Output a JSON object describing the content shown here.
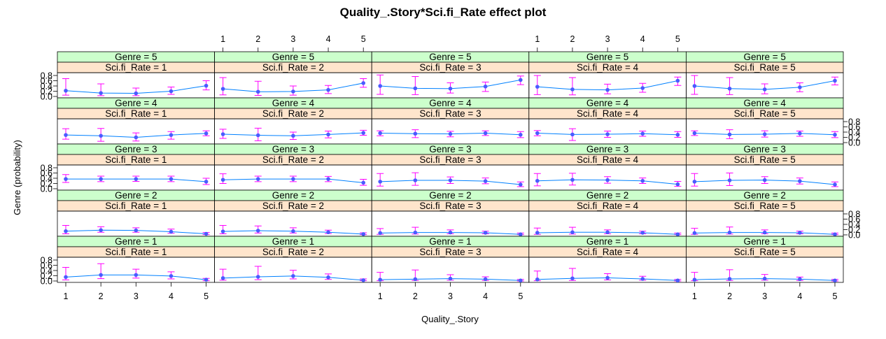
{
  "chart_data": {
    "type": "line",
    "title": "Quality_.Story*Sci.fi_Rate effect plot",
    "xlabel": "Quality_.Story",
    "ylabel": "Genre (probability)",
    "x": [
      1,
      2,
      3,
      4,
      5
    ],
    "x_tick_labels": [
      "1",
      "2",
      "3",
      "4",
      "5"
    ],
    "ylim": [
      0.0,
      0.8
    ],
    "y_tick_labels": [
      "0.0",
      "0.2",
      "0.4",
      "0.6",
      "0.8"
    ],
    "panel_columns": [
      "Sci.fi_Rate = 1",
      "Sci.fi_Rate = 2",
      "Sci.fi_Rate = 3",
      "Sci.fi_Rate = 4",
      "Sci.fi_Rate = 5"
    ],
    "panel_rows": [
      "Genre = 5",
      "Genre = 4",
      "Genre = 3",
      "Genre = 2",
      "Genre = 1"
    ],
    "colors": {
      "genre_strip": "#ccffcc",
      "scifi_strip": "#ffe5cc",
      "line": "#0080ff",
      "point": "#4a5bff",
      "error_bar": "#ff00ff"
    },
    "panels": [
      {
        "genre": "Genre = 5",
        "scifi": "Sci.fi_Rate = 1",
        "fit": [
          0.22,
          0.13,
          0.12,
          0.2,
          0.41
        ],
        "lower": [
          0.05,
          0.03,
          0.03,
          0.08,
          0.25
        ],
        "upper": [
          0.68,
          0.48,
          0.32,
          0.36,
          0.6
        ]
      },
      {
        "genre": "Genre = 5",
        "scifi": "Sci.fi_Rate = 2",
        "fit": [
          0.29,
          0.18,
          0.19,
          0.25,
          0.51
        ],
        "lower": [
          0.06,
          0.04,
          0.05,
          0.11,
          0.35
        ],
        "upper": [
          0.72,
          0.58,
          0.4,
          0.42,
          0.68
        ]
      },
      {
        "genre": "Genre = 5",
        "scifi": "Sci.fi_Rate = 3",
        "fit": [
          0.4,
          0.31,
          0.3,
          0.38,
          0.63
        ],
        "lower": [
          0.08,
          0.07,
          0.13,
          0.19,
          0.45
        ],
        "upper": [
          0.82,
          0.76,
          0.52,
          0.55,
          0.78
        ]
      },
      {
        "genre": "Genre = 5",
        "scifi": "Sci.fi_Rate = 4",
        "fit": [
          0.37,
          0.27,
          0.25,
          0.32,
          0.6
        ],
        "lower": [
          0.07,
          0.06,
          0.1,
          0.16,
          0.42
        ],
        "upper": [
          0.8,
          0.72,
          0.47,
          0.5,
          0.74
        ]
      },
      {
        "genre": "Genre = 5",
        "scifi": "Sci.fi_Rate = 5",
        "fit": [
          0.4,
          0.3,
          0.27,
          0.35,
          0.6
        ],
        "lower": [
          0.08,
          0.07,
          0.1,
          0.18,
          0.44
        ],
        "upper": [
          0.8,
          0.72,
          0.48,
          0.52,
          0.74
        ]
      },
      {
        "genre": "Genre = 4",
        "scifi": "Sci.fi_Rate = 1",
        "fit": [
          0.29,
          0.26,
          0.2,
          0.29,
          0.35
        ],
        "lower": [
          0.13,
          0.05,
          0.06,
          0.13,
          0.26
        ],
        "upper": [
          0.53,
          0.54,
          0.37,
          0.42,
          0.45
        ]
      },
      {
        "genre": "Genre = 4",
        "scifi": "Sci.fi_Rate = 2",
        "fit": [
          0.32,
          0.28,
          0.26,
          0.31,
          0.37
        ],
        "lower": [
          0.16,
          0.07,
          0.12,
          0.18,
          0.28
        ],
        "upper": [
          0.51,
          0.55,
          0.4,
          0.44,
          0.47
        ]
      },
      {
        "genre": "Genre = 4",
        "scifi": "Sci.fi_Rate = 3",
        "fit": [
          0.36,
          0.34,
          0.33,
          0.36,
          0.3
        ],
        "lower": [
          0.26,
          0.19,
          0.22,
          0.27,
          0.19
        ],
        "upper": [
          0.45,
          0.49,
          0.43,
          0.45,
          0.42
        ]
      },
      {
        "genre": "Genre = 4",
        "scifi": "Sci.fi_Rate = 4",
        "fit": [
          0.36,
          0.31,
          0.32,
          0.34,
          0.3
        ],
        "lower": [
          0.26,
          0.08,
          0.2,
          0.24,
          0.2
        ],
        "upper": [
          0.46,
          0.53,
          0.44,
          0.44,
          0.42
        ]
      },
      {
        "genre": "Genre = 4",
        "scifi": "Sci.fi_Rate = 5",
        "fit": [
          0.36,
          0.31,
          0.32,
          0.35,
          0.3
        ],
        "lower": [
          0.27,
          0.15,
          0.21,
          0.24,
          0.19
        ],
        "upper": [
          0.45,
          0.49,
          0.45,
          0.44,
          0.42
        ]
      },
      {
        "genre": "Genre = 3",
        "scifi": "Sci.fi_Rate = 1",
        "fit": [
          0.37,
          0.37,
          0.37,
          0.37,
          0.27
        ],
        "lower": [
          0.24,
          0.27,
          0.28,
          0.27,
          0.16
        ],
        "upper": [
          0.54,
          0.48,
          0.48,
          0.48,
          0.4
        ]
      },
      {
        "genre": "Genre = 3",
        "scifi": "Sci.fi_Rate = 2",
        "fit": [
          0.34,
          0.37,
          0.37,
          0.37,
          0.23
        ],
        "lower": [
          0.2,
          0.27,
          0.27,
          0.27,
          0.13
        ],
        "upper": [
          0.57,
          0.48,
          0.48,
          0.47,
          0.36
        ]
      },
      {
        "genre": "Genre = 3",
        "scifi": "Sci.fi_Rate = 3",
        "fit": [
          0.27,
          0.32,
          0.32,
          0.29,
          0.16
        ],
        "lower": [
          0.1,
          0.13,
          0.2,
          0.19,
          0.08
        ],
        "upper": [
          0.58,
          0.61,
          0.45,
          0.41,
          0.26
        ]
      },
      {
        "genre": "Genre = 3",
        "scifi": "Sci.fi_Rate = 4",
        "fit": [
          0.3,
          0.34,
          0.33,
          0.3,
          0.17
        ],
        "lower": [
          0.11,
          0.14,
          0.21,
          0.2,
          0.09
        ],
        "upper": [
          0.58,
          0.59,
          0.46,
          0.41,
          0.28
        ]
      },
      {
        "genre": "Genre = 3",
        "scifi": "Sci.fi_Rate = 5",
        "fit": [
          0.27,
          0.32,
          0.33,
          0.29,
          0.16
        ],
        "lower": [
          0.1,
          0.12,
          0.2,
          0.18,
          0.08
        ],
        "upper": [
          0.58,
          0.6,
          0.46,
          0.41,
          0.26
        ]
      },
      {
        "genre": "Genre = 2",
        "scifi": "Sci.fi_Rate = 1",
        "fit": [
          0.14,
          0.18,
          0.17,
          0.12,
          0.04
        ],
        "lower": [
          0.04,
          0.1,
          0.1,
          0.06,
          0.01
        ],
        "upper": [
          0.36,
          0.31,
          0.27,
          0.22,
          0.09
        ]
      },
      {
        "genre": "Genre = 2",
        "scifi": "Sci.fi_Rate = 2",
        "fit": [
          0.13,
          0.16,
          0.14,
          0.1,
          0.03
        ],
        "lower": [
          0.04,
          0.07,
          0.07,
          0.05,
          0.01
        ],
        "upper": [
          0.36,
          0.34,
          0.27,
          0.18,
          0.08
        ]
      },
      {
        "genre": "Genre = 2",
        "scifi": "Sci.fi_Rate = 3",
        "fit": [
          0.07,
          0.09,
          0.09,
          0.08,
          0.02
        ],
        "lower": [
          0.02,
          0.03,
          0.04,
          0.04,
          0.01
        ],
        "upper": [
          0.24,
          0.29,
          0.19,
          0.14,
          0.07
        ]
      },
      {
        "genre": "Genre = 2",
        "scifi": "Sci.fi_Rate = 4",
        "fit": [
          0.08,
          0.1,
          0.1,
          0.08,
          0.02
        ],
        "lower": [
          0.02,
          0.03,
          0.04,
          0.04,
          0.01
        ],
        "upper": [
          0.26,
          0.29,
          0.19,
          0.14,
          0.07
        ]
      },
      {
        "genre": "Genre = 2",
        "scifi": "Sci.fi_Rate = 5",
        "fit": [
          0.07,
          0.09,
          0.09,
          0.08,
          0.02
        ],
        "lower": [
          0.02,
          0.03,
          0.04,
          0.04,
          0.01
        ],
        "upper": [
          0.25,
          0.3,
          0.19,
          0.14,
          0.07
        ]
      },
      {
        "genre": "Genre = 1",
        "scifi": "Sci.fi_Rate = 1",
        "fit": [
          0.15,
          0.23,
          0.23,
          0.19,
          0.05
        ],
        "lower": [
          0.04,
          0.09,
          0.11,
          0.08,
          0.01
        ],
        "upper": [
          0.52,
          0.66,
          0.45,
          0.35,
          0.1
        ]
      },
      {
        "genre": "Genre = 1",
        "scifi": "Sci.fi_Rate = 2",
        "fit": [
          0.11,
          0.16,
          0.19,
          0.14,
          0.03
        ],
        "lower": [
          0.03,
          0.05,
          0.08,
          0.06,
          0.01
        ],
        "upper": [
          0.45,
          0.56,
          0.41,
          0.27,
          0.08
        ]
      },
      {
        "genre": "Genre = 1",
        "scifi": "Sci.fi_Rate = 3",
        "fit": [
          0.05,
          0.07,
          0.09,
          0.07,
          0.02
        ],
        "lower": [
          0.01,
          0.02,
          0.03,
          0.02,
          0.0
        ],
        "upper": [
          0.33,
          0.42,
          0.24,
          0.16,
          0.06
        ]
      },
      {
        "genre": "Genre = 1",
        "scifi": "Sci.fi_Rate = 4",
        "fit": [
          0.06,
          0.1,
          0.12,
          0.08,
          0.02
        ],
        "lower": [
          0.01,
          0.02,
          0.04,
          0.03,
          0.0
        ],
        "upper": [
          0.38,
          0.48,
          0.28,
          0.18,
          0.06
        ]
      },
      {
        "genre": "Genre = 1",
        "scifi": "Sci.fi_Rate = 5",
        "fit": [
          0.05,
          0.08,
          0.09,
          0.07,
          0.02
        ],
        "lower": [
          0.01,
          0.02,
          0.03,
          0.02,
          0.0
        ],
        "upper": [
          0.33,
          0.43,
          0.25,
          0.15,
          0.06
        ]
      }
    ]
  }
}
